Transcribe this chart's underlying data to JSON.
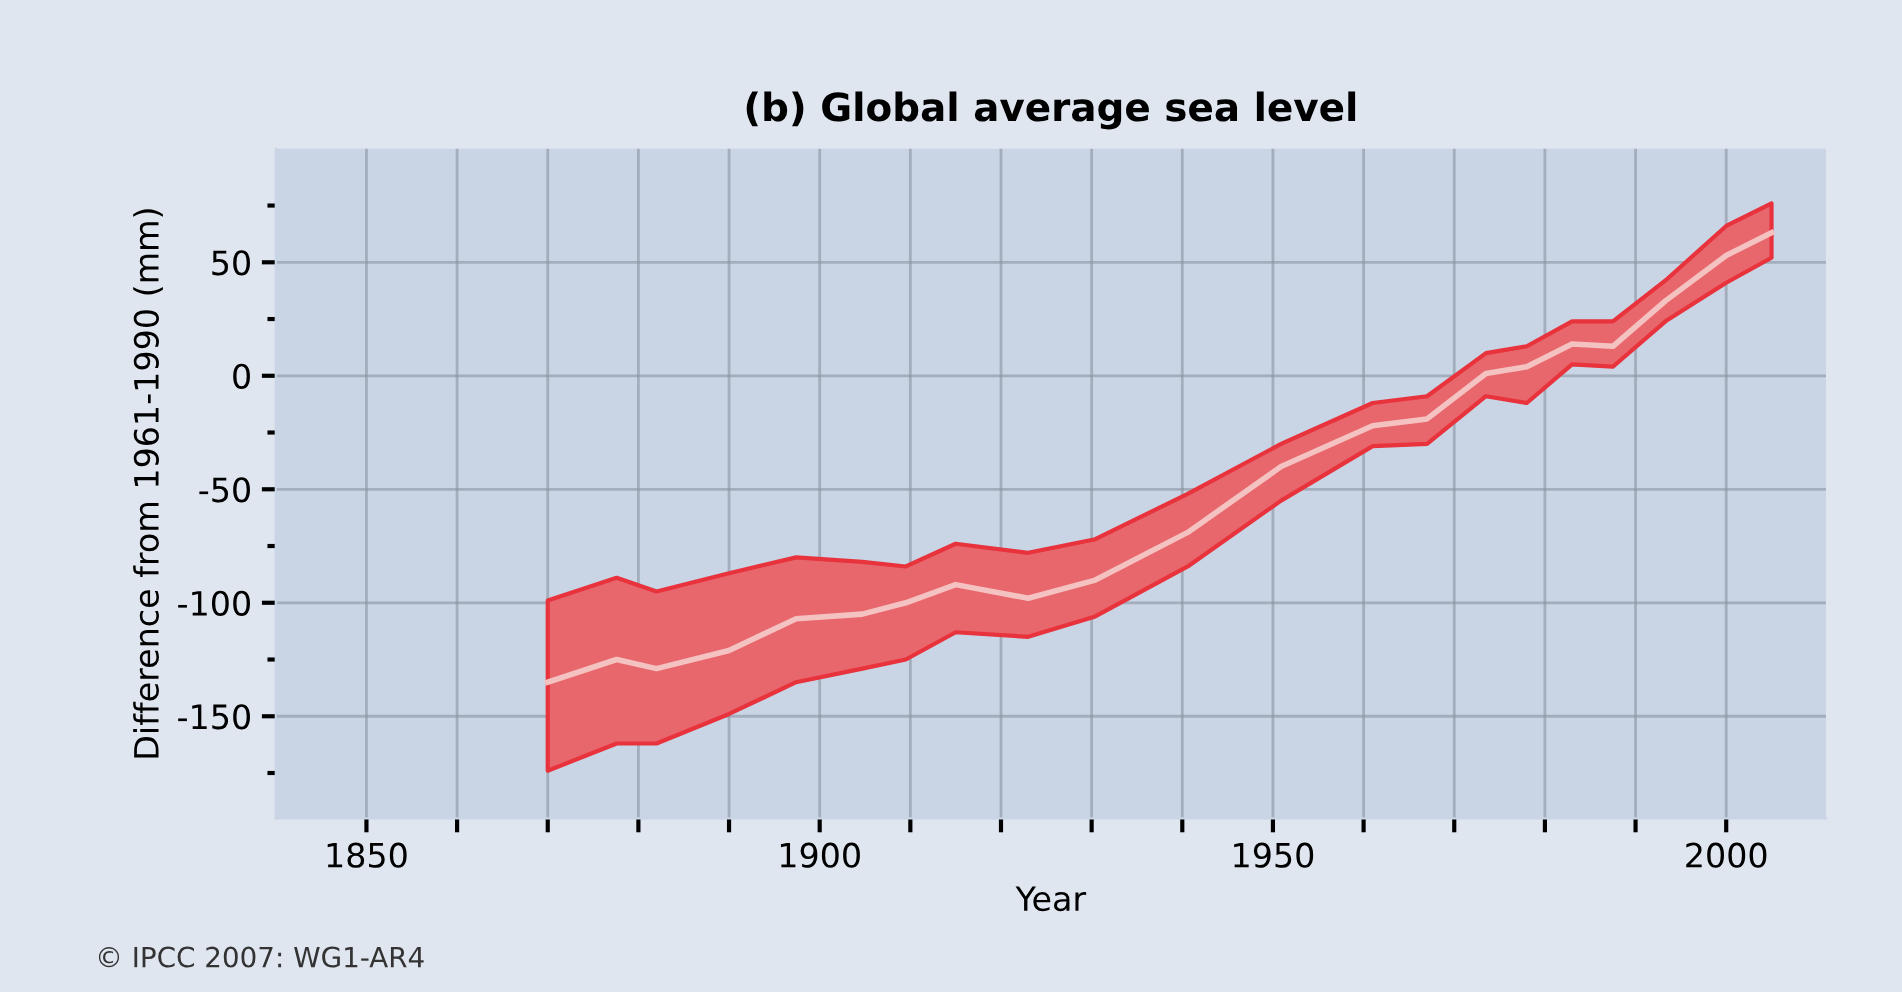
{
  "chart_data": {
    "type": "line",
    "title": "(b) Global average sea level",
    "xlabel": "Year",
    "ylabel": "Difference from 1961-1990 (mm)",
    "annotations": [
      "© IPCC 2007: WG1-AR4"
    ],
    "x": [
      1870,
      1877.6,
      1882,
      1890,
      1897.4,
      1904.7,
      1909.5,
      1915,
      1923,
      1930.4,
      1940.6,
      1950.9,
      1961,
      1967,
      1973.5,
      1978,
      1983,
      1987.5,
      1993.3,
      2000,
      2005
    ],
    "series": [
      {
        "color": "#f5c2c2",
        "values": [
          -135,
          -125,
          -129,
          -121,
          -107,
          -105,
          -100,
          -92,
          -98,
          -90,
          -69,
          -40,
          -22,
          -19,
          1,
          4,
          14,
          13,
          33,
          53,
          63
        ],
        "lower": [
          -174,
          -162,
          -162,
          -149,
          -135,
          -129,
          -125,
          -113,
          -115,
          -106,
          -84,
          -55,
          -31,
          -30,
          -9,
          -12,
          5,
          4,
          24,
          41,
          52
        ],
        "upper": [
          -99,
          -89,
          -95,
          -87,
          -80,
          -82,
          -84,
          -74,
          -78,
          -72,
          -52,
          -30,
          -12,
          -9,
          10,
          13,
          24,
          24,
          42,
          66,
          76
        ]
      }
    ],
    "xlim": [
      1840,
      2011
    ],
    "ylim": [
      -195,
      100
    ],
    "xticks": [
      1850,
      {
        "value": 1860,
        "label": null
      },
      {
        "value": 1870,
        "label": null
      },
      {
        "value": 1880,
        "label": null
      },
      {
        "value": 1890,
        "label": null
      },
      1900,
      {
        "value": 1910,
        "label": null
      },
      {
        "value": 1920,
        "label": null
      },
      {
        "value": 1930,
        "label": null
      },
      {
        "value": 1940,
        "label": null
      },
      1950,
      {
        "value": 1960,
        "label": null
      },
      {
        "value": 1970,
        "label": null
      },
      {
        "value": 1980,
        "label": null
      },
      {
        "value": 1990,
        "label": null
      },
      2000
    ],
    "yticks": [
      {
        "value": 75,
        "label": null
      },
      50,
      {
        "value": 25,
        "label": null
      },
      0,
      {
        "value": -25,
        "label": null
      },
      -50,
      {
        "value": -75,
        "label": null
      },
      -100,
      {
        "value": -125,
        "label": null
      },
      -150,
      {
        "value": -175,
        "label": null
      }
    ],
    "grid": true,
    "marker": "none",
    "line_style": "solid"
  }
}
